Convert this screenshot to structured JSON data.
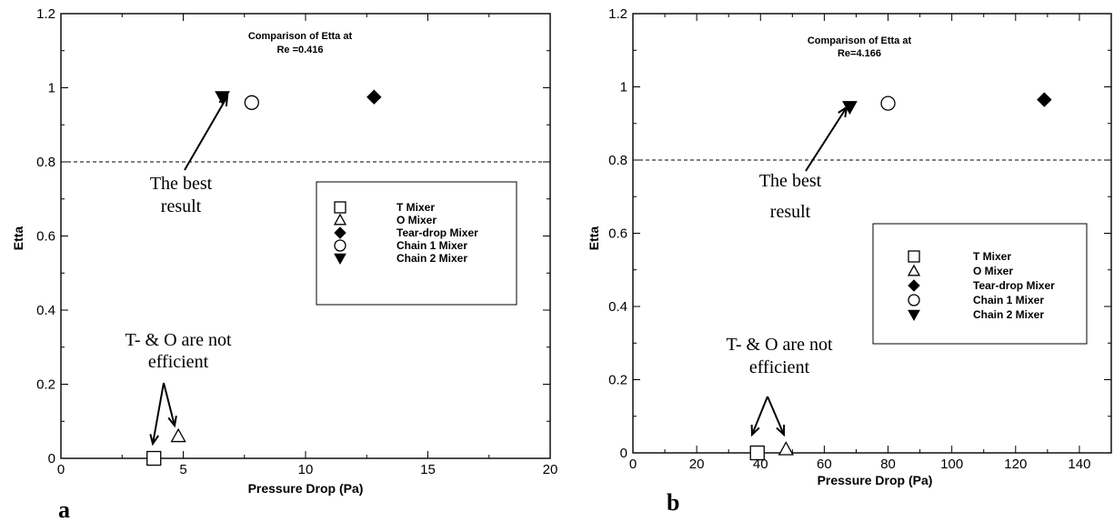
{
  "chart_data": [
    {
      "panel": "a",
      "type": "scatter",
      "title": "Comparison of Etta at",
      "subtitle": "Re =0.416",
      "xlabel": "Pressure Drop (Pa)",
      "ylabel": "Etta",
      "xlim": [
        0,
        20
      ],
      "ylim": [
        0,
        1.2
      ],
      "xticks": [
        "0",
        "5",
        "10",
        "15",
        "20"
      ],
      "yticks": [
        "0",
        "0.2",
        "0.4",
        "0.6",
        "0.8",
        "1",
        "1.2"
      ],
      "reference_line": {
        "y": 0.8,
        "style": "dashed"
      },
      "legend_position": "center-right",
      "series": [
        {
          "name": "T Mixer",
          "marker": "square",
          "x": [
            3.8
          ],
          "y": [
            0.0
          ]
        },
        {
          "name": "O Mixer",
          "marker": "triangle-up",
          "x": [
            4.8
          ],
          "y": [
            0.06
          ]
        },
        {
          "name": "Tear-drop Mixer",
          "marker": "diamond-filled",
          "x": [
            12.8
          ],
          "y": [
            0.975
          ]
        },
        {
          "name": "Chain 1 Mixer",
          "marker": "circle",
          "x": [
            7.8
          ],
          "y": [
            0.96
          ]
        },
        {
          "name": "Chain 2 Mixer",
          "marker": "triangle-down-filled",
          "x": [
            6.6
          ],
          "y": [
            0.975
          ]
        }
      ],
      "annotations": [
        {
          "lines": [
            "The best",
            "result"
          ],
          "target": "Chain 2 Mixer"
        },
        {
          "lines": [
            "T- & O are not",
            "efficient"
          ],
          "target": "T Mixer, O Mixer"
        }
      ]
    },
    {
      "panel": "b",
      "type": "scatter",
      "title": "Comparison of Etta at",
      "subtitle": "Re=4.166",
      "xlabel": "Pressure Drop (Pa)",
      "ylabel": "Etta",
      "xlim": [
        0,
        150
      ],
      "ylim": [
        0,
        1.2
      ],
      "xticks": [
        "0",
        "20",
        "40",
        "60",
        "80",
        "100",
        "120",
        "140"
      ],
      "yticks": [
        "0",
        "0.2",
        "0.4",
        "0.6",
        "0.8",
        "1",
        "1.2"
      ],
      "reference_line": {
        "y": 0.8,
        "style": "dashed"
      },
      "legend_position": "center-right",
      "series": [
        {
          "name": "T Mixer",
          "marker": "square",
          "x": [
            39
          ],
          "y": [
            0.0
          ]
        },
        {
          "name": "O Mixer",
          "marker": "triangle-up",
          "x": [
            48
          ],
          "y": [
            0.01
          ]
        },
        {
          "name": "Tear-drop Mixer",
          "marker": "diamond-filled",
          "x": [
            129
          ],
          "y": [
            0.965
          ]
        },
        {
          "name": "Chain 1 Mixer",
          "marker": "circle",
          "x": [
            80
          ],
          "y": [
            0.955
          ]
        },
        {
          "name": "Chain 2 Mixer",
          "marker": "triangle-down-filled",
          "x": [
            68
          ],
          "y": [
            0.945
          ]
        }
      ],
      "annotations": [
        {
          "lines": [
            "The best",
            "result"
          ],
          "target": "Chain 2 Mixer"
        },
        {
          "lines": [
            "T- & O are not",
            "efficient"
          ],
          "target": "T Mixer, O Mixer"
        }
      ]
    }
  ]
}
